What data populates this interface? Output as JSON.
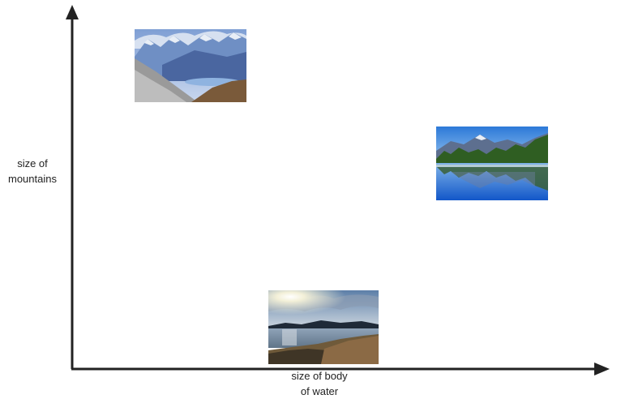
{
  "axes": {
    "y_label_lines": [
      "size of",
      "mountains"
    ],
    "x_label_lines": [
      "size of body",
      "of water"
    ],
    "color": "#222222"
  },
  "photos": [
    {
      "name": "alpine-valley-lake-photo",
      "scene": "snow-capped mountain range above a distant lake valley"
    },
    {
      "name": "mountain-reflection-lake-photo",
      "scene": "forested mountains reflected in a calm blue lake"
    },
    {
      "name": "sunset-lake-photo",
      "scene": "sun over a wide lake with low hills and dry grass shore"
    }
  ],
  "colors": {
    "sky_blue": "#3f86d8",
    "water_blue": "#1f6fd6",
    "forest_green": "#2f5e22",
    "snow": "#e8eef6",
    "mountain_haze": "#6f8fc4",
    "brown_slope": "#7a5a3a"
  }
}
